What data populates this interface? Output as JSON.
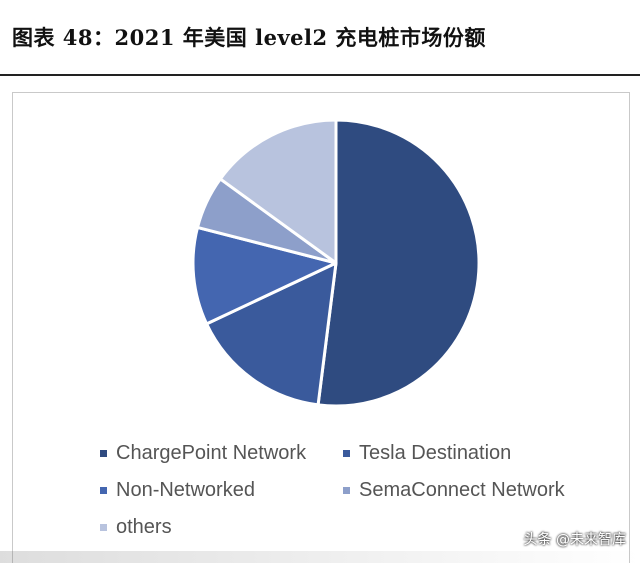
{
  "header": {
    "title": "图表 48：2021 年美国 level2 充电桩市场份额"
  },
  "chart_data": {
    "type": "pie",
    "start_angle_deg": 0,
    "direction": "clockwise",
    "legend_placement": "bottom",
    "slices": [
      {
        "label": "ChargePoint Network",
        "value": 52,
        "color": "#2f4b80"
      },
      {
        "label": "Tesla Destination",
        "value": 16,
        "color": "#3a5a9c"
      },
      {
        "label": "Non-Networked",
        "value": 11,
        "color": "#4466b0"
      },
      {
        "label": "SemaConnect Network",
        "value": 6,
        "color": "#8d9fca"
      },
      {
        "label": "others",
        "value": 15,
        "color": "#b8c3de"
      }
    ]
  },
  "watermark": {
    "text": "头条 @未来智库"
  }
}
